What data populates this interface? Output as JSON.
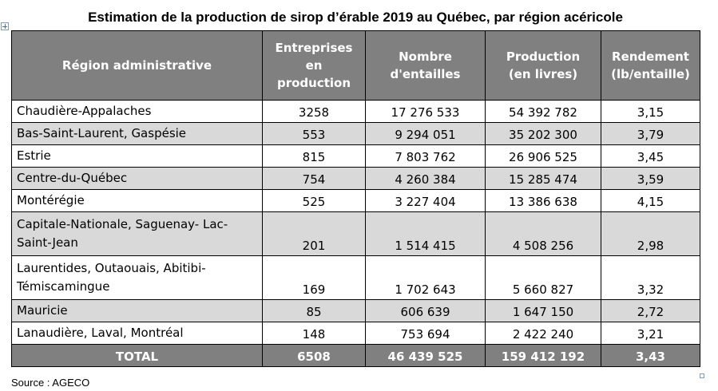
{
  "title": "Estimation de la production de sirop d’érable 2019 au Québec, par région acéricole",
  "header": {
    "region": "Région administrative",
    "entreprises": [
      "Entreprises",
      "en",
      "production"
    ],
    "entailles": [
      "Nombre",
      "d'entailles"
    ],
    "production": [
      "Production",
      "(en livres)"
    ],
    "rendement": [
      "Rendement",
      "(lb/entaille)"
    ]
  },
  "rows": [
    {
      "region": [
        "Chaudière-Appalaches"
      ],
      "entreprises": "3258",
      "entailles": "17 276 533",
      "production": "54 392 782",
      "rendement": "3,15"
    },
    {
      "region": [
        "Bas-Saint-Laurent, Gaspésie"
      ],
      "entreprises": "553",
      "entailles": "9 294 051",
      "production": "35 202 300",
      "rendement": "3,79"
    },
    {
      "region": [
        "Estrie"
      ],
      "entreprises": "815",
      "entailles": "7 803 762",
      "production": "26 906 525",
      "rendement": "3,45"
    },
    {
      "region": [
        "Centre-du-Québec"
      ],
      "entreprises": "754",
      "entailles": "4 260 384",
      "production": "15 285 474",
      "rendement": "3,59"
    },
    {
      "region": [
        "Montérégie"
      ],
      "entreprises": "525",
      "entailles": "3 227 404",
      "production": "13 386 638",
      "rendement": "4,15"
    },
    {
      "region": [
        "Capitale-Nationale, Saguenay- Lac-",
        "Saint-Jean"
      ],
      "entreprises": "201",
      "entailles": "1 514 415",
      "production": "4 508 256",
      "rendement": "2,98"
    },
    {
      "region": [
        "Laurentides, Outaouais, Abitibi-",
        "Témiscamingue"
      ],
      "entreprises": "169",
      "entailles": "1 702 643",
      "production": "5 660 827",
      "rendement": "3,32"
    },
    {
      "region": [
        "Mauricie"
      ],
      "entreprises": "85",
      "entailles": "606 639",
      "production": "1 647 150",
      "rendement": "2,72"
    },
    {
      "region": [
        "Lanaudière, Laval, Montréal"
      ],
      "entreprises": "148",
      "entailles": "753 694",
      "production": "2 422 240",
      "rendement": "3,21"
    }
  ],
  "total": {
    "label": "TOTAL",
    "entreprises": "6508",
    "entailles": "46 439 525",
    "production": "159 412 192",
    "rendement": "3,43"
  },
  "source": "Source : AGECO",
  "colors": {
    "header_bg": "#808080",
    "shade_bg": "#d9d9d9",
    "header_text": "#ffffff"
  }
}
